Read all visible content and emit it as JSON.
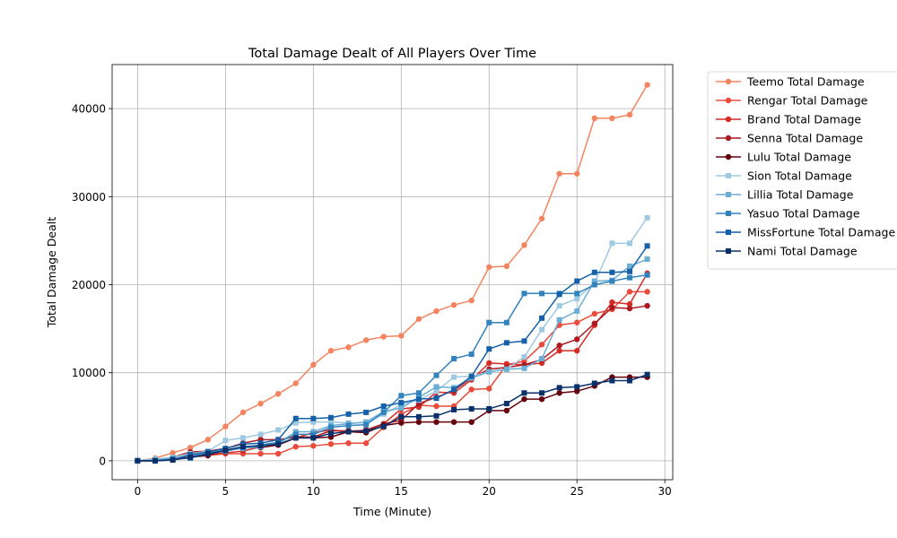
{
  "chart_data": {
    "type": "line",
    "title": "Total Damage Dealt of All Players Over Time",
    "xlabel": "Time (Minute)",
    "ylabel": "Total Damage Dealt",
    "xlim": [
      -1.45,
      30.45
    ],
    "ylim": [
      -2150,
      45000
    ],
    "xticks": [
      0,
      5,
      10,
      15,
      20,
      25,
      30
    ],
    "yticks": [
      0,
      10000,
      20000,
      30000,
      40000
    ],
    "grid": true,
    "legend_position": "outside-right",
    "x": [
      0,
      1,
      2,
      3,
      4,
      5,
      6,
      7,
      8,
      9,
      10,
      11,
      12,
      13,
      14,
      15,
      16,
      17,
      18,
      19,
      20,
      21,
      22,
      23,
      24,
      25,
      26,
      27,
      28,
      29
    ],
    "series": [
      {
        "name": "Teemo Total Damage",
        "color": "#f4845f",
        "marker": "circle",
        "values": [
          0,
          300,
          900,
          1500,
          2400,
          3900,
          5500,
          6500,
          7600,
          8800,
          10900,
          12500,
          12900,
          13700,
          14100,
          14200,
          16100,
          17000,
          17700,
          18200,
          22000,
          22100,
          24500,
          27500,
          32600,
          32600,
          38900,
          38900,
          39300,
          42700
        ]
      },
      {
        "name": "Rengar Total Damage",
        "color": "#ea4b3b",
        "marker": "circle",
        "values": [
          0,
          100,
          300,
          500,
          600,
          800,
          800,
          800,
          800,
          1600,
          1700,
          1900,
          2000,
          2000,
          3800,
          5300,
          6300,
          6200,
          6200,
          8100,
          8200,
          10900,
          11300,
          13200,
          15400,
          15700,
          16700,
          17200,
          19200,
          19200
        ]
      },
      {
        "name": "Brand Total Damage",
        "color": "#d42c26",
        "marker": "circle",
        "values": [
          0,
          0,
          200,
          600,
          700,
          900,
          1100,
          1600,
          1800,
          2600,
          3200,
          3500,
          3300,
          3500,
          4200,
          5900,
          6100,
          7800,
          7700,
          9200,
          11100,
          11000,
          10900,
          11100,
          12500,
          12500,
          15400,
          18000,
          17800,
          21300
        ]
      },
      {
        "name": "Senna Total Damage",
        "color": "#ab1a20",
        "marker": "circle",
        "values": [
          0,
          0,
          400,
          1000,
          1100,
          1400,
          2000,
          2400,
          2400,
          2700,
          2700,
          3400,
          3400,
          3400,
          4200,
          4600,
          6500,
          7200,
          8000,
          9400,
          10400,
          10600,
          10900,
          11500,
          13100,
          13800,
          15600,
          17400,
          17300,
          17600
        ]
      },
      {
        "name": "Lulu Total Damage",
        "color": "#67000d",
        "marker": "circle",
        "values": [
          0,
          0,
          100,
          400,
          600,
          1200,
          1500,
          1500,
          1800,
          2600,
          2600,
          2700,
          3300,
          3200,
          4000,
          4300,
          4400,
          4400,
          4400,
          4400,
          5700,
          5700,
          7000,
          7000,
          7700,
          7900,
          8500,
          9500,
          9500,
          9500
        ]
      },
      {
        "name": "Sion Total Damage",
        "color": "#9ecae1",
        "marker": "square",
        "values": [
          0,
          200,
          400,
          800,
          1100,
          2300,
          2600,
          3000,
          3500,
          4300,
          4400,
          4400,
          4300,
          4300,
          5300,
          6400,
          6900,
          7900,
          9500,
          9600,
          10100,
          10400,
          11800,
          14900,
          17600,
          18400,
          20200,
          24700,
          24700,
          27600
        ]
      },
      {
        "name": "Lillia Total Damage",
        "color": "#6baed6",
        "marker": "square",
        "values": [
          0,
          100,
          300,
          600,
          900,
          1200,
          1400,
          1600,
          2000,
          3300,
          3300,
          4000,
          4200,
          4400,
          5600,
          6000,
          7200,
          8400,
          8300,
          9400,
          10100,
          10400,
          10500,
          11600,
          16000,
          17000,
          20400,
          20500,
          22100,
          22900
        ]
      },
      {
        "name": "Yasuo Total Damage",
        "color": "#3282be",
        "marker": "square",
        "values": [
          0,
          0,
          200,
          300,
          800,
          1100,
          1500,
          1800,
          2100,
          3000,
          3000,
          3800,
          4000,
          4100,
          5500,
          7400,
          7700,
          9700,
          11600,
          12100,
          15700,
          15700,
          19000,
          19000,
          19000,
          19000,
          20000,
          20400,
          20800,
          21100
        ]
      },
      {
        "name": "MissFortune Total Damage",
        "color": "#1561a9",
        "marker": "square",
        "values": [
          0,
          0,
          100,
          700,
          1000,
          1400,
          1900,
          2000,
          2400,
          4800,
          4800,
          4900,
          5300,
          5500,
          6200,
          6600,
          7000,
          7100,
          8100,
          9600,
          12700,
          13400,
          13600,
          16200,
          18900,
          20400,
          21400,
          21400,
          21500,
          24400
        ]
      },
      {
        "name": "Nami Total Damage",
        "color": "#08306b",
        "marker": "square",
        "values": [
          0,
          0,
          100,
          400,
          800,
          1200,
          1600,
          1700,
          1900,
          2600,
          2600,
          3100,
          3300,
          3400,
          3900,
          5000,
          5000,
          5100,
          5800,
          5900,
          5900,
          6500,
          7700,
          7700,
          8300,
          8400,
          8800,
          9100,
          9100,
          9800
        ]
      }
    ]
  }
}
